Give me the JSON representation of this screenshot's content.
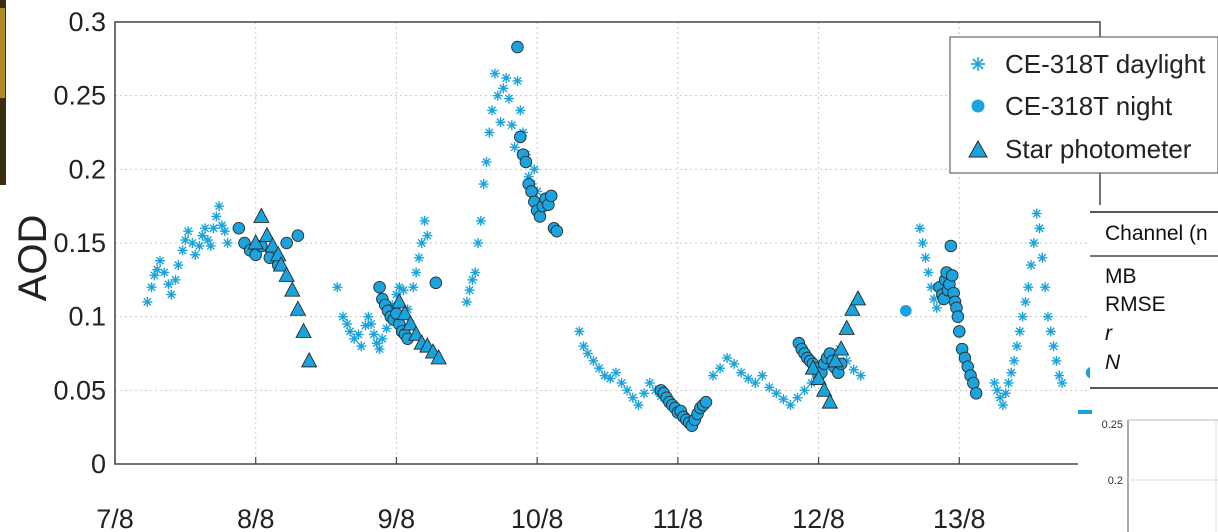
{
  "colors": {
    "series": "#1aa3dc",
    "marker_edge": "#2a2a2a",
    "grid": "#c8c8c8",
    "axis": "#444444"
  },
  "chart_data": [
    {
      "type": "scatter",
      "ylabel": "AOD",
      "xlabel": "",
      "x_ticks": [
        "7/8",
        "8/8",
        "9/8",
        "10/8",
        "11/8",
        "12/8",
        "13/8"
      ],
      "x_range_days": [
        7.0,
        14.0
      ],
      "y_ticks": [
        "0",
        "0.05",
        "0.1",
        "0.15",
        "0.2",
        "0.25",
        "0.3"
      ],
      "ylim": [
        0,
        0.3
      ],
      "grid": true,
      "legend_position": "top-right",
      "legend": [
        {
          "label": "CE-318T daylight",
          "marker": "asterisk"
        },
        {
          "label": "CE-318T night",
          "marker": "circle"
        },
        {
          "label": "Star photometer",
          "marker": "triangle"
        }
      ],
      "series": [
        {
          "name": "CE-318T daylight",
          "x": [
            7.23,
            7.26,
            7.28,
            7.3,
            7.32,
            7.35,
            7.38,
            7.4,
            7.43,
            7.45,
            7.48,
            7.5,
            7.52,
            7.55,
            7.57,
            7.6,
            7.62,
            7.64,
            7.66,
            7.68,
            7.7,
            7.72,
            7.74,
            7.76,
            7.78,
            7.8,
            8.58,
            8.62,
            8.65,
            8.67,
            8.7,
            8.73,
            8.75,
            8.78,
            8.8,
            8.82,
            8.84,
            8.86,
            8.88,
            8.9,
            8.93,
            8.95,
            8.97,
            9.0,
            9.02,
            9.05,
            9.08,
            9.1,
            9.12,
            9.14,
            9.16,
            9.18,
            9.2,
            9.22,
            9.5,
            9.52,
            9.54,
            9.56,
            9.58,
            9.6,
            9.62,
            9.64,
            9.66,
            9.68,
            9.7,
            9.72,
            9.74,
            9.76,
            9.78,
            9.8,
            9.82,
            9.84,
            9.86,
            9.88,
            9.9,
            9.92,
            9.94,
            9.96,
            9.98,
            10.0,
            10.3,
            10.33,
            10.36,
            10.4,
            10.44,
            10.48,
            10.52,
            10.56,
            10.6,
            10.64,
            10.68,
            10.72,
            10.76,
            10.8,
            10.84,
            10.88,
            11.25,
            11.3,
            11.35,
            11.4,
            11.45,
            11.5,
            11.55,
            11.6,
            11.65,
            11.7,
            11.75,
            11.8,
            11.85,
            11.9,
            11.95,
            12.0,
            12.05,
            12.1,
            12.15,
            12.2,
            12.25,
            12.3,
            12.72,
            12.74,
            12.76,
            12.78,
            12.8,
            12.82,
            12.84,
            13.25,
            13.27,
            13.29,
            13.31,
            13.33,
            13.35,
            13.37,
            13.39,
            13.41,
            13.43,
            13.45,
            13.47,
            13.49,
            13.51,
            13.53,
            13.55,
            13.57,
            13.59,
            13.61,
            13.63,
            13.65,
            13.67,
            13.69,
            13.71,
            13.73
          ],
          "values": [
            0.11,
            0.12,
            0.128,
            0.132,
            0.138,
            0.13,
            0.122,
            0.115,
            0.125,
            0.135,
            0.145,
            0.152,
            0.158,
            0.15,
            0.142,
            0.148,
            0.155,
            0.16,
            0.152,
            0.148,
            0.16,
            0.168,
            0.175,
            0.162,
            0.158,
            0.15,
            0.12,
            0.1,
            0.095,
            0.09,
            0.085,
            0.088,
            0.08,
            0.094,
            0.1,
            0.095,
            0.088,
            0.082,
            0.078,
            0.085,
            0.092,
            0.1,
            0.108,
            0.115,
            0.12,
            0.118,
            0.105,
            0.095,
            0.12,
            0.13,
            0.14,
            0.15,
            0.165,
            0.155,
            0.11,
            0.118,
            0.125,
            0.13,
            0.15,
            0.165,
            0.19,
            0.205,
            0.225,
            0.24,
            0.265,
            0.25,
            0.232,
            0.255,
            0.262,
            0.248,
            0.23,
            0.215,
            0.26,
            0.24,
            0.225,
            0.21,
            0.195,
            0.19,
            0.2,
            0.185,
            0.09,
            0.08,
            0.075,
            0.07,
            0.065,
            0.06,
            0.058,
            0.062,
            0.055,
            0.05,
            0.045,
            0.04,
            0.048,
            0.055,
            0.05,
            0.046,
            0.06,
            0.065,
            0.072,
            0.068,
            0.062,
            0.058,
            0.055,
            0.06,
            0.052,
            0.048,
            0.044,
            0.04,
            0.045,
            0.05,
            0.055,
            0.062,
            0.066,
            0.072,
            0.078,
            0.07,
            0.064,
            0.06,
            0.16,
            0.15,
            0.14,
            0.13,
            0.12,
            0.112,
            0.106,
            0.055,
            0.05,
            0.045,
            0.04,
            0.048,
            0.055,
            0.062,
            0.07,
            0.08,
            0.09,
            0.1,
            0.11,
            0.12,
            0.135,
            0.15,
            0.17,
            0.16,
            0.14,
            0.12,
            0.1,
            0.09,
            0.08,
            0.07,
            0.06,
            0.055
          ]
        },
        {
          "name": "CE-318T night",
          "x": [
            7.88,
            7.92,
            7.96,
            8.0,
            8.04,
            8.1,
            8.16,
            8.22,
            8.3,
            8.88,
            8.9,
            8.92,
            8.94,
            8.96,
            8.98,
            9.0,
            9.02,
            9.04,
            9.06,
            9.08,
            9.28,
            9.86,
            9.88,
            9.9,
            9.92,
            9.94,
            9.96,
            9.98,
            10.0,
            10.02,
            10.04,
            10.06,
            10.08,
            10.1,
            10.12,
            10.14,
            10.88,
            10.9,
            10.92,
            10.94,
            10.96,
            10.98,
            11.0,
            11.02,
            11.04,
            11.06,
            11.08,
            11.1,
            11.12,
            11.14,
            11.16,
            11.18,
            11.2,
            11.86,
            11.88,
            11.9,
            11.92,
            11.94,
            11.96,
            11.98,
            12.0,
            12.02,
            12.04,
            12.06,
            12.08,
            12.1,
            12.12,
            12.14,
            12.16,
            12.62,
            12.86,
            12.88,
            12.89,
            12.9,
            12.91,
            12.92,
            12.93,
            12.94,
            12.95,
            12.96,
            12.97,
            12.98,
            12.99,
            13.0,
            13.02,
            13.04,
            13.06,
            13.08,
            13.1,
            13.12,
            13.94,
            14.0
          ],
          "values": [
            0.16,
            0.15,
            0.145,
            0.142,
            0.148,
            0.14,
            0.135,
            0.15,
            0.155,
            0.12,
            0.112,
            0.108,
            0.104,
            0.1,
            0.098,
            0.102,
            0.095,
            0.09,
            0.088,
            0.085,
            0.123,
            0.283,
            0.222,
            0.21,
            0.205,
            0.19,
            0.185,
            0.178,
            0.172,
            0.168,
            0.175,
            0.18,
            0.176,
            0.182,
            0.16,
            0.158,
            0.05,
            0.048,
            0.045,
            0.042,
            0.04,
            0.038,
            0.035,
            0.036,
            0.032,
            0.03,
            0.028,
            0.026,
            0.03,
            0.034,
            0.038,
            0.04,
            0.042,
            0.082,
            0.078,
            0.075,
            0.072,
            0.07,
            0.068,
            0.065,
            0.06,
            0.062,
            0.068,
            0.072,
            0.075,
            0.07,
            0.065,
            0.062,
            0.068,
            0.104,
            0.12,
            0.115,
            0.112,
            0.125,
            0.13,
            0.118,
            0.122,
            0.148,
            0.128,
            0.116,
            0.11,
            0.106,
            0.1,
            0.09,
            0.078,
            0.072,
            0.066,
            0.06,
            0.055,
            0.048,
            0.062,
            0.068
          ]
        },
        {
          "name": "Star photometer",
          "x": [
            8.0,
            8.04,
            8.08,
            8.12,
            8.16,
            8.18,
            8.22,
            8.26,
            8.3,
            8.34,
            8.38,
            9.02,
            9.06,
            9.1,
            9.14,
            9.18,
            9.22,
            9.26,
            9.3,
            11.96,
            12.0,
            12.04,
            12.08,
            12.12,
            12.16,
            12.2,
            12.24,
            12.28
          ],
          "values": [
            0.15,
            0.168,
            0.155,
            0.148,
            0.142,
            0.135,
            0.128,
            0.118,
            0.105,
            0.09,
            0.07,
            0.11,
            0.102,
            0.095,
            0.088,
            0.082,
            0.08,
            0.076,
            0.072,
            0.065,
            0.058,
            0.05,
            0.042,
            0.07,
            0.078,
            0.092,
            0.105,
            0.112
          ]
        }
      ]
    },
    {
      "type": "line",
      "y_ticks": [
        "0.25",
        "0.2"
      ],
      "ylim": [
        0.15,
        0.25
      ]
    },
    {
      "type": "table",
      "header": "Channel (n",
      "rows": [
        "MB",
        "RMSE",
        "r",
        "N"
      ]
    }
  ]
}
